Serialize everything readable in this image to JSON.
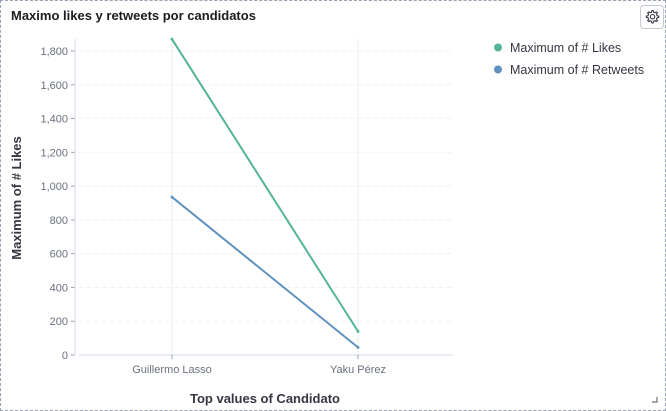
{
  "panel": {
    "title": "Maximo likes y retweets por candidatos",
    "settings_icon": "gear-icon",
    "resize_icon": "resize-corner-icon"
  },
  "chart_data": {
    "type": "line",
    "title": "Maximo likes y retweets por candidatos",
    "xlabel": "Top values of Candidato",
    "ylabel": "Maximum of # Likes",
    "categories": [
      "Guillermo Lasso",
      "Yaku Pérez"
    ],
    "series": [
      {
        "name": "Maximum of # Likes",
        "values": [
          1870,
          140
        ],
        "color": "#54b399"
      },
      {
        "name": "Maximum of # Retweets",
        "values": [
          935,
          45
        ],
        "color": "#6092c0"
      }
    ],
    "ylim": [
      0,
      1900
    ],
    "yticks": [
      0,
      200,
      400,
      600,
      800,
      1000,
      1200,
      1400,
      1600,
      1800
    ],
    "ytick_labels": [
      "0",
      "200",
      "400",
      "600",
      "800",
      "1,000",
      "1,200",
      "1,400",
      "1,600",
      "1,800"
    ],
    "grid": true,
    "legend_position": "top-right"
  }
}
